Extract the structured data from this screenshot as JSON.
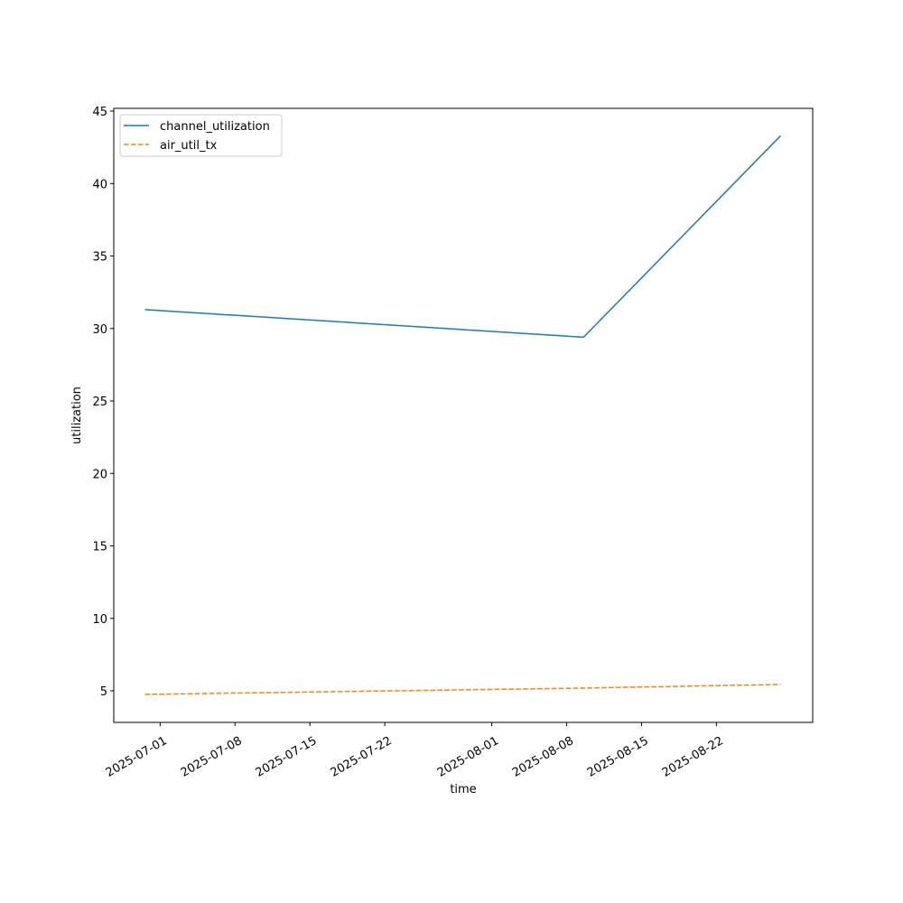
{
  "chart_data": {
    "type": "line",
    "title": "",
    "xlabel": "time",
    "ylabel": "utilization",
    "x": [
      "2025-06-29T14:00",
      "2025-08-09T14:00",
      "2025-08-28T00:00"
    ],
    "series": [
      {
        "name": "channel_utilization",
        "values": [
          31.3,
          29.4,
          43.3
        ],
        "color": "#1f77b4",
        "linestyle": "solid"
      },
      {
        "name": "air_util_tx",
        "values": [
          4.75,
          5.19,
          5.44
        ],
        "color": "#ff7f0e",
        "linestyle": "dashed"
      }
    ],
    "xlim": [
      "2025-06-26T16:00",
      "2025-08-31T00:00"
    ],
    "ylim": [
      2.82,
      45.19
    ],
    "xticks": [
      "2025-07-01",
      "2025-07-08",
      "2025-07-15",
      "2025-07-22",
      "2025-08-01",
      "2025-08-08",
      "2025-08-15",
      "2025-08-22"
    ],
    "yticks": [
      5,
      10,
      15,
      20,
      25,
      30,
      35,
      40,
      45
    ],
    "grid": false,
    "legend": "upper-left"
  }
}
